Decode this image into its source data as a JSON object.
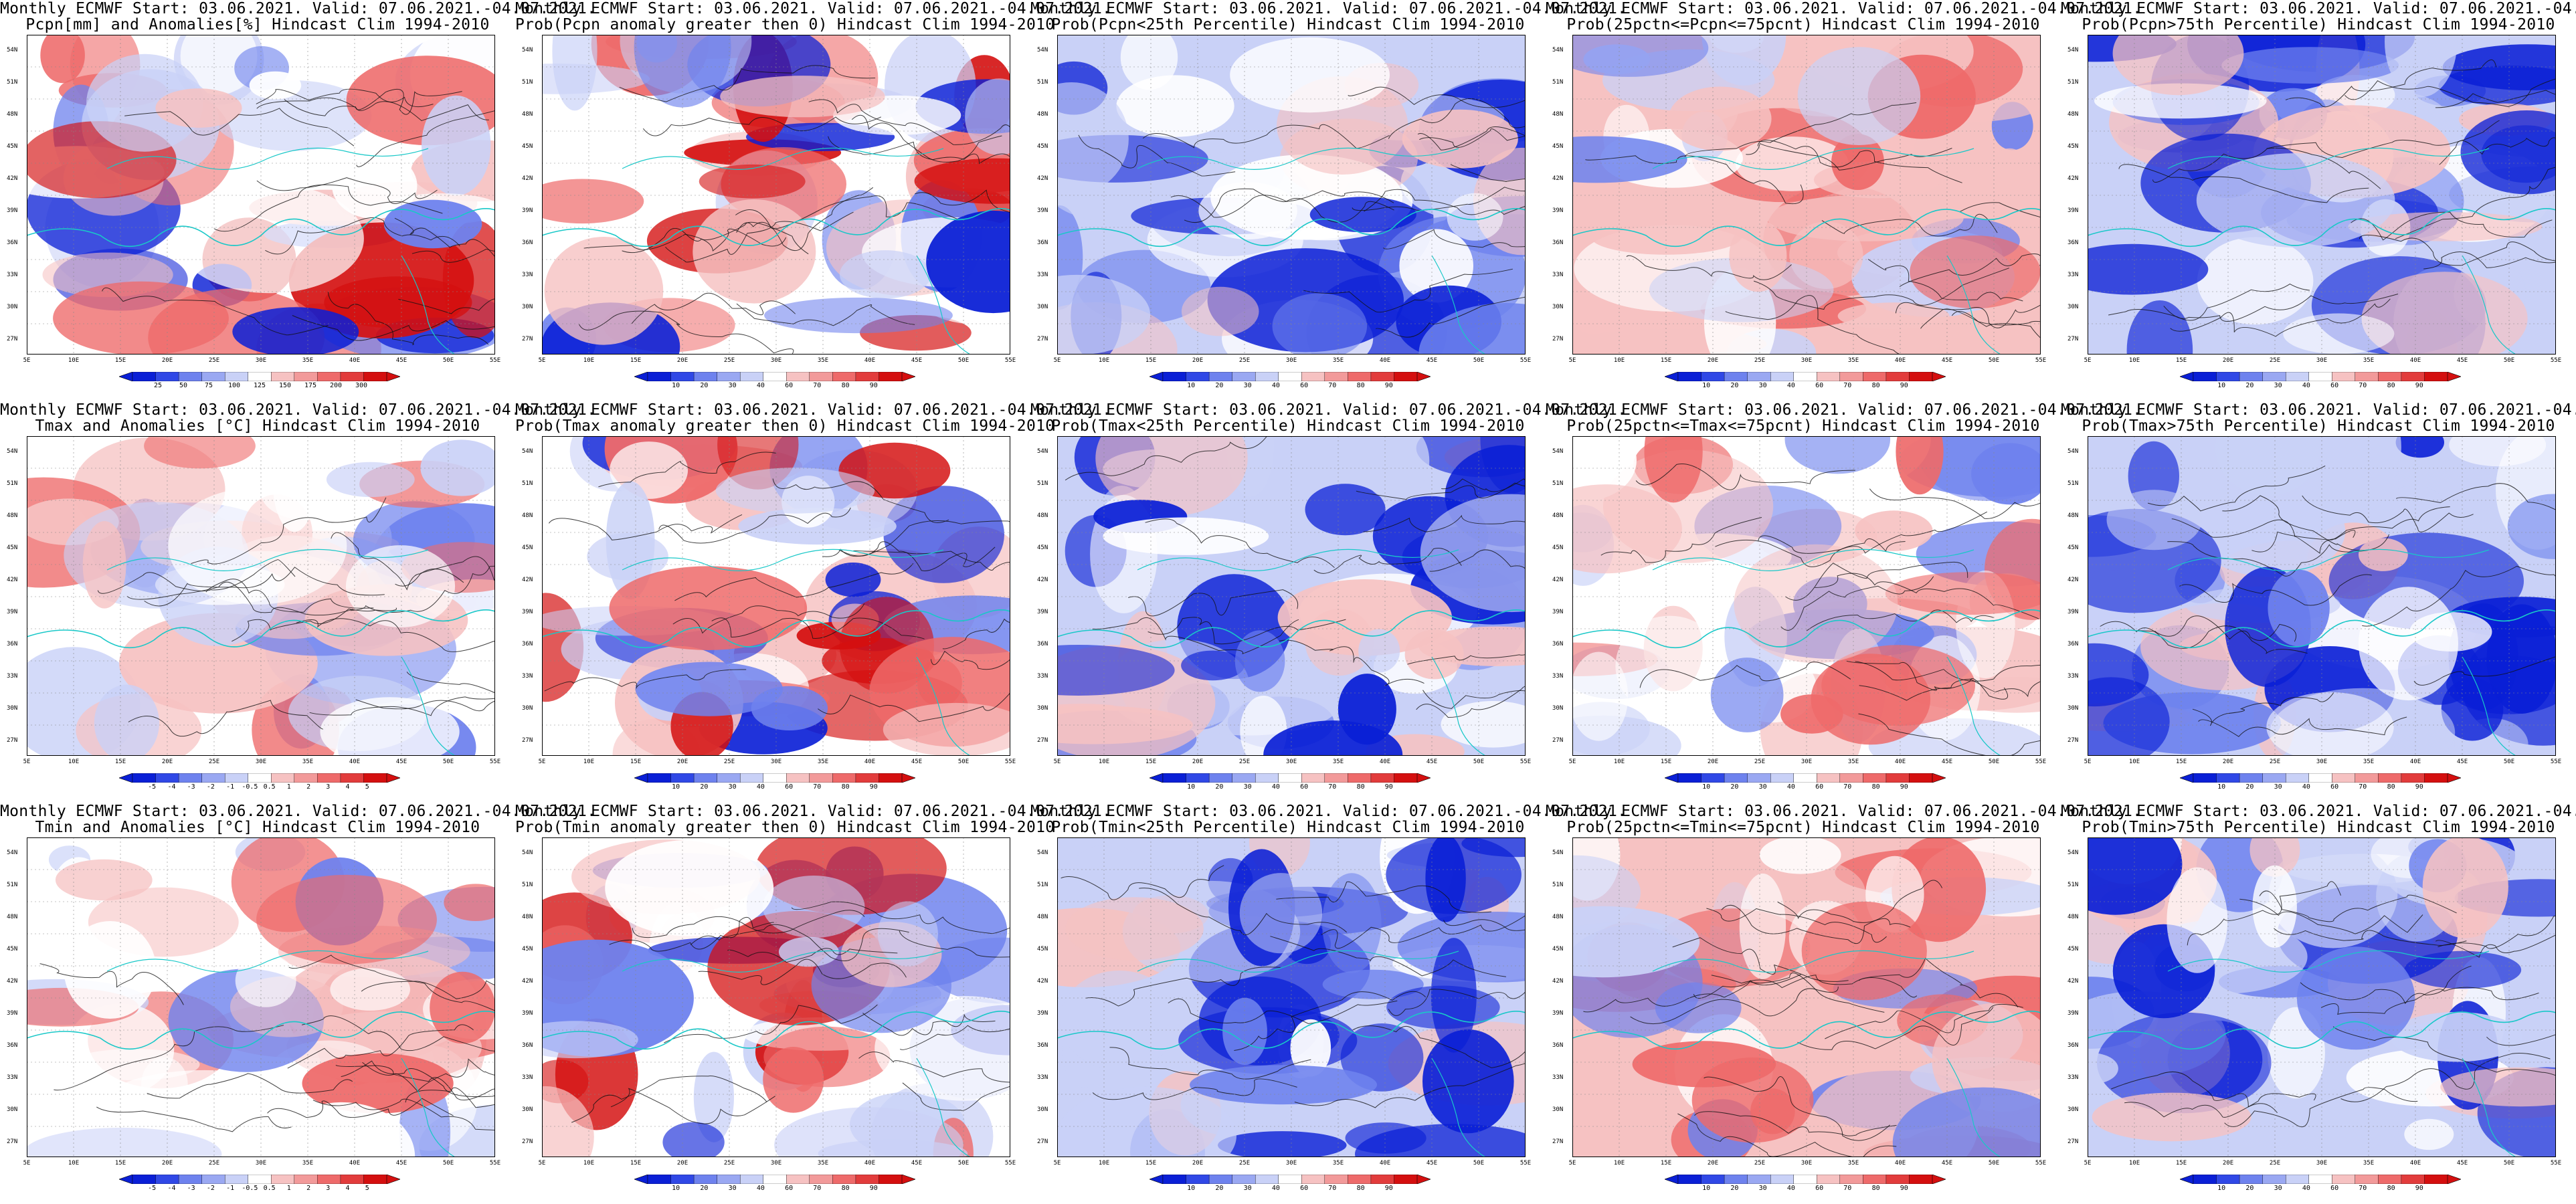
{
  "common": {
    "title_line1": "Monthly ECMWF Start: 03.06.2021. Valid: 07.06.2021.-04.07.2021.",
    "lat_labels": [
      "54N",
      "51N",
      "48N",
      "45N",
      "42N",
      "39N",
      "36N",
      "33N",
      "30N",
      "27N"
    ],
    "lon_labels": [
      "5E",
      "10E",
      "15E",
      "20E",
      "25E",
      "30E",
      "35E",
      "40E",
      "45E",
      "50E",
      "55E"
    ]
  },
  "colors": {
    "blue_dark": "#0a1fd6",
    "blue_mid": "#6e82ee",
    "blue_light": "#c9d1f7",
    "white": "#ffffff",
    "red_light": "#f6c2c2",
    "red_mid": "#ee6a6a",
    "red_dark": "#d40f0f",
    "contour": "#111111",
    "coast": "#19c8c8"
  },
  "panels": [
    {
      "id": "pcpn-anom",
      "title2": "Pcpn[mm] and Anomalies[%] Hindcast Clim 1994-2010",
      "scheme": "anom",
      "colorbar": [
        "25",
        "50",
        "75",
        "100",
        "125",
        "150",
        "175",
        "200",
        "300"
      ]
    },
    {
      "id": "pcpn-prob-gt0",
      "title2": "Prob(Pcpn anomaly greater then 0) Hindcast Clim 1994-2010",
      "scheme": "prob",
      "colorbar": [
        "10",
        "20",
        "30",
        "40",
        "60",
        "70",
        "80",
        "90"
      ]
    },
    {
      "id": "pcpn-lt25",
      "title2": "Prob(Pcpn<25th Percentile) Hindcast Clim 1994-2010",
      "scheme": "probblue",
      "colorbar": [
        "10",
        "20",
        "30",
        "40",
        "60",
        "70",
        "80",
        "90"
      ]
    },
    {
      "id": "pcpn-25-75",
      "title2": "Prob(25pctn<=Pcpn<=75pcnt) Hindcast Clim 1994-2010",
      "scheme": "probred",
      "colorbar": [
        "10",
        "20",
        "30",
        "40",
        "60",
        "70",
        "80",
        "90"
      ]
    },
    {
      "id": "pcpn-gt75",
      "title2": "Prob(Pcpn>75th Percentile) Hindcast Clim 1994-2010",
      "scheme": "probblue",
      "colorbar": [
        "10",
        "20",
        "30",
        "40",
        "60",
        "70",
        "80",
        "90"
      ]
    },
    {
      "id": "tmax-anom",
      "title2": "Tmax and Anomalies [°C] Hindcast Clim 1994-2010",
      "scheme": "tanom",
      "colorbar": [
        "-5",
        "-4",
        "-3",
        "-2",
        "-1",
        "-0.5",
        "0.5",
        "1",
        "2",
        "3",
        "4",
        "5"
      ]
    },
    {
      "id": "tmax-prob-gt0",
      "title2": "Prob(Tmax anomaly greater then 0) Hindcast Clim 1994-2010",
      "scheme": "prob",
      "colorbar": [
        "10",
        "20",
        "30",
        "40",
        "60",
        "70",
        "80",
        "90"
      ]
    },
    {
      "id": "tmax-lt25",
      "title2": "Prob(Tmax<25th Percentile) Hindcast Clim 1994-2010",
      "scheme": "probblue",
      "colorbar": [
        "10",
        "20",
        "30",
        "40",
        "60",
        "70",
        "80",
        "90"
      ]
    },
    {
      "id": "tmax-25-75",
      "title2": "Prob(25pctn<=Tmax<=75pcnt) Hindcast Clim 1994-2010",
      "scheme": "mixed",
      "colorbar": [
        "10",
        "20",
        "30",
        "40",
        "60",
        "70",
        "80",
        "90"
      ]
    },
    {
      "id": "tmax-gt75",
      "title2": "Prob(Tmax>75th Percentile) Hindcast Clim 1994-2010",
      "scheme": "probblue",
      "colorbar": [
        "10",
        "20",
        "30",
        "40",
        "60",
        "70",
        "80",
        "90"
      ]
    },
    {
      "id": "tmin-anom",
      "title2": "Tmin and Anomalies [°C] Hindcast Clim 1994-2010",
      "scheme": "tanom",
      "colorbar": [
        "-5",
        "-4",
        "-3",
        "-2",
        "-1",
        "-0.5",
        "0.5",
        "1",
        "2",
        "3",
        "4",
        "5"
      ]
    },
    {
      "id": "tmin-prob-gt0",
      "title2": "Prob(Tmin anomaly greater then 0) Hindcast Clim 1994-2010",
      "scheme": "prob",
      "colorbar": [
        "10",
        "20",
        "30",
        "40",
        "60",
        "70",
        "80",
        "90"
      ]
    },
    {
      "id": "tmin-lt25",
      "title2": "Prob(Tmin<25th Percentile) Hindcast Clim 1994-2010",
      "scheme": "probblue",
      "colorbar": [
        "10",
        "20",
        "30",
        "40",
        "60",
        "70",
        "80",
        "90"
      ]
    },
    {
      "id": "tmin-25-75",
      "title2": "Prob(25pctn<=Tmin<=75pcnt) Hindcast Clim 1994-2010",
      "scheme": "probred",
      "colorbar": [
        "10",
        "20",
        "30",
        "40",
        "60",
        "70",
        "80",
        "90"
      ]
    },
    {
      "id": "tmin-gt75",
      "title2": "Prob(Tmin>75th Percentile) Hindcast Clim 1994-2010",
      "scheme": "probblue",
      "colorbar": [
        "10",
        "20",
        "30",
        "40",
        "60",
        "70",
        "80",
        "90"
      ]
    }
  ]
}
